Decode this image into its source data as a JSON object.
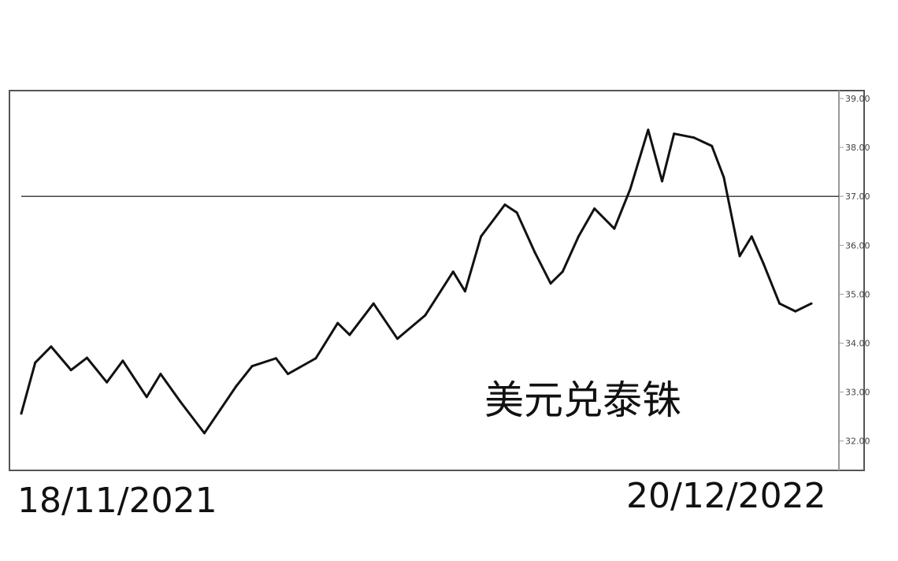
{
  "chart_data": {
    "type": "line",
    "title": "",
    "xlabel": "",
    "ylabel": "",
    "x_start_label": "18/11/2021",
    "x_end_label": "20/12/2022",
    "annotation": "美元兑泰铢",
    "ylim": [
      31.85,
      39.15
    ],
    "yticks": [
      32,
      33,
      34,
      35,
      36,
      37,
      38,
      39
    ],
    "ytick_labels": [
      "32.00",
      "33.00",
      "34.00",
      "35.00",
      "36.00",
      "37.00",
      "38.00",
      "39.00"
    ],
    "y_axis_side": "right",
    "reference_line": 37,
    "grid": false,
    "line_color": "#111111",
    "points": [
      [
        "2021-11-18",
        32.56
      ],
      [
        "2021-11-25",
        33.6
      ],
      [
        "2021-12-03",
        33.93
      ],
      [
        "2021-12-13",
        33.45
      ],
      [
        "2021-12-21",
        33.7
      ],
      [
        "2021-12-31",
        33.2
      ],
      [
        "2022-01-08",
        33.64
      ],
      [
        "2022-01-20",
        32.9
      ],
      [
        "2022-01-27",
        33.37
      ],
      [
        "2022-02-06",
        32.8
      ],
      [
        "2022-02-18",
        32.16
      ],
      [
        "2022-02-26",
        32.64
      ],
      [
        "2022-03-06",
        33.12
      ],
      [
        "2022-03-14",
        33.53
      ],
      [
        "2022-03-26",
        33.69
      ],
      [
        "2022-04-01",
        33.37
      ],
      [
        "2022-04-15",
        33.69
      ],
      [
        "2022-04-26",
        34.41
      ],
      [
        "2022-05-02",
        34.17
      ],
      [
        "2022-05-14",
        34.81
      ],
      [
        "2022-05-26",
        34.09
      ],
      [
        "2022-06-09",
        34.57
      ],
      [
        "2022-06-23",
        35.46
      ],
      [
        "2022-06-29",
        35.06
      ],
      [
        "2022-07-07",
        36.18
      ],
      [
        "2022-07-19",
        36.83
      ],
      [
        "2022-07-25",
        36.67
      ],
      [
        "2022-08-03",
        35.86
      ],
      [
        "2022-08-11",
        35.22
      ],
      [
        "2022-08-17",
        35.46
      ],
      [
        "2022-08-25",
        36.18
      ],
      [
        "2022-09-02",
        36.75
      ],
      [
        "2022-09-12",
        36.34
      ],
      [
        "2022-09-20",
        37.15
      ],
      [
        "2022-09-29",
        38.36
      ],
      [
        "2022-10-06",
        37.31
      ],
      [
        "2022-10-12",
        38.28
      ],
      [
        "2022-10-22",
        38.2
      ],
      [
        "2022-10-31",
        38.03
      ],
      [
        "2022-11-06",
        37.39
      ],
      [
        "2022-11-14",
        35.78
      ],
      [
        "2022-11-20",
        36.18
      ],
      [
        "2022-11-26",
        35.62
      ],
      [
        "2022-12-04",
        34.81
      ],
      [
        "2022-12-12",
        34.65
      ],
      [
        "2022-12-20",
        34.81
      ]
    ]
  }
}
